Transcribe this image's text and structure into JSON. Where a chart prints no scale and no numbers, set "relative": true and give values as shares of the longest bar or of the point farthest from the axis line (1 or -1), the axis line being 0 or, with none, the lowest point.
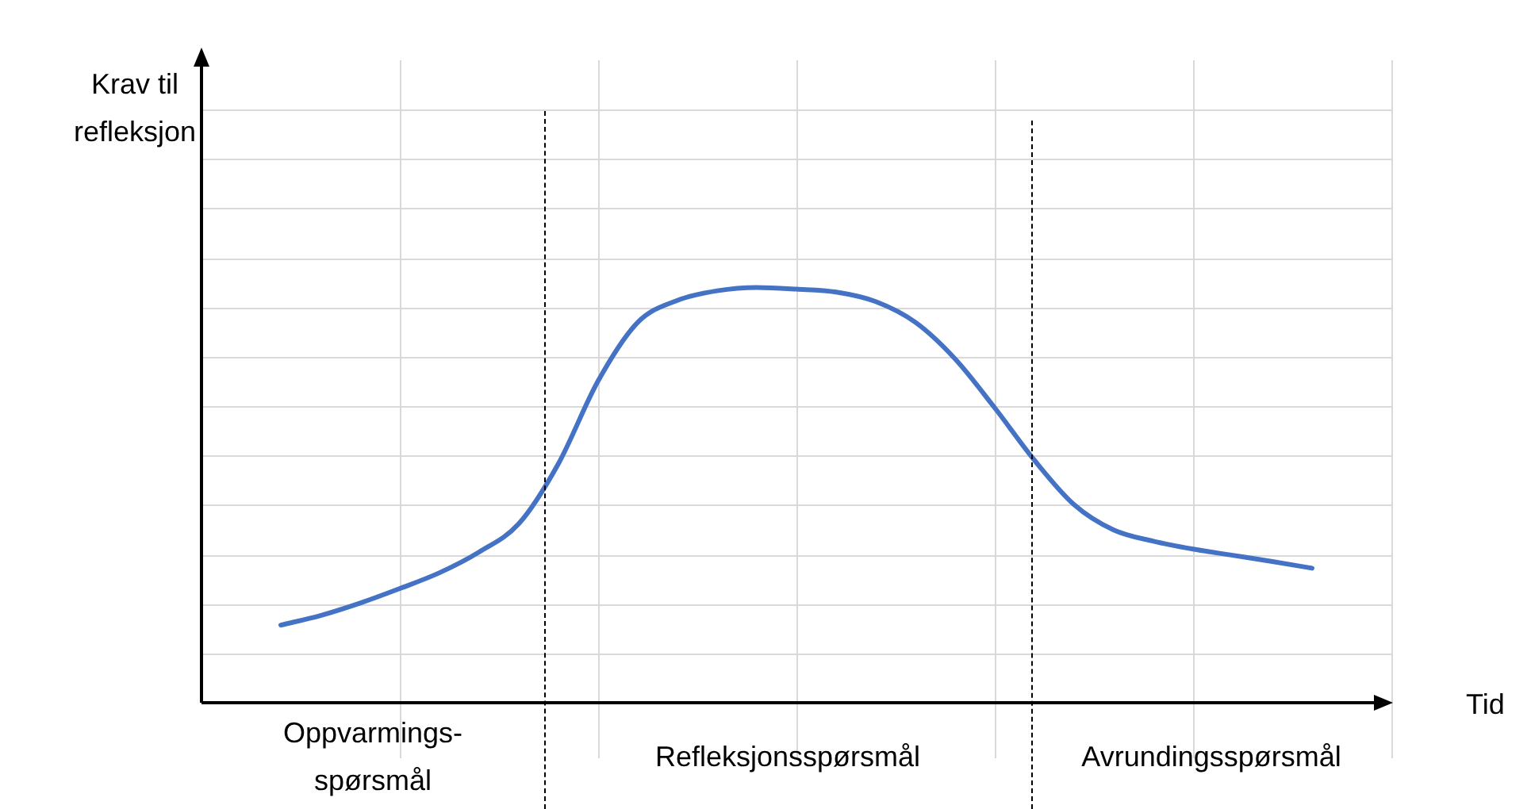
{
  "chart_data": {
    "type": "line",
    "relative": true,
    "ylabel": "Krav til refleksjon",
    "xlabel": "Tid",
    "categories": [
      null,
      null,
      null,
      null,
      null,
      null,
      null,
      null,
      null,
      null,
      null,
      null,
      null,
      null,
      null,
      null,
      null,
      null,
      null,
      null,
      null,
      null,
      null,
      null,
      null,
      null,
      null,
      null,
      null,
      null,
      null
    ],
    "series": [
      {
        "color": "#4472c4",
        "values": [
          null,
          null,
          0.187,
          0.21,
          0.24,
          0.275,
          0.313,
          0.363,
          0.431,
          0.576,
          0.775,
          0.916,
          0.969,
          0.992,
          1,
          0.996,
          0.989,
          0.966,
          0.916,
          0.828,
          0.71,
          0.584,
          0.477,
          0.416,
          0.389,
          0.37,
          0.355,
          0.34,
          0.324,
          null,
          null
        ]
      }
    ],
    "annotations": [
      "Oppvarmings-spørsmål",
      "Refleksjonsspørsmål",
      "Avrundingsspørsmål"
    ],
    "grid": true,
    "legend": false,
    "marker": "none",
    "line_style": "solid"
  }
}
